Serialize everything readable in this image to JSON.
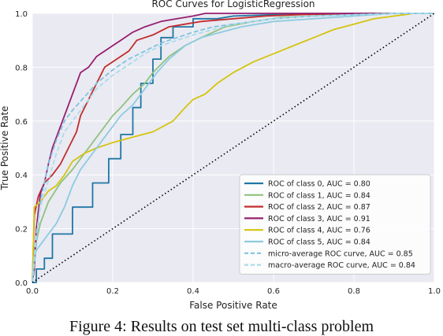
{
  "caption": "Figure 4: Results on test set multi-class problem",
  "chart_data": {
    "type": "line",
    "title": "ROC Curves for LogisticRegression",
    "xlabel": "False Positive Rate",
    "ylabel": "True Positive Rate",
    "xlim": [
      0,
      1
    ],
    "ylim": [
      0,
      1
    ],
    "xticks": [
      "0.0",
      "0.2",
      "0.4",
      "0.6",
      "0.8",
      "1.0"
    ],
    "yticks": [
      "0.0",
      "0.2",
      "0.4",
      "0.6",
      "0.8",
      "1.0"
    ],
    "grid": true,
    "legend_position": "lower-right",
    "series": [
      {
        "name": "ROC of class 0, AUC = 0.80",
        "color": "#1f77a4",
        "dash": false,
        "x": [
          0,
          0.01,
          0.01,
          0.03,
          0.03,
          0.05,
          0.05,
          0.1,
          0.1,
          0.15,
          0.15,
          0.19,
          0.19,
          0.22,
          0.22,
          0.25,
          0.25,
          0.27,
          0.27,
          0.3,
          0.3,
          0.32,
          0.32,
          0.35,
          0.35,
          0.4,
          0.4,
          0.46,
          0.5,
          0.6,
          0.7,
          0.8,
          1.0
        ],
        "y": [
          0,
          0,
          0.05,
          0.05,
          0.09,
          0.09,
          0.18,
          0.18,
          0.28,
          0.28,
          0.37,
          0.37,
          0.46,
          0.46,
          0.55,
          0.55,
          0.65,
          0.65,
          0.74,
          0.74,
          0.83,
          0.83,
          0.91,
          0.91,
          0.95,
          0.95,
          0.98,
          0.98,
          0.99,
          0.995,
          0.997,
          1.0,
          1.0
        ]
      },
      {
        "name": "ROC of class 1, AUC = 0.84",
        "color": "#8fc27f",
        "dash": false,
        "x": [
          0,
          0.005,
          0.02,
          0.04,
          0.07,
          0.1,
          0.13,
          0.17,
          0.2,
          0.22,
          0.25,
          0.28,
          0.3,
          0.34,
          0.38,
          0.42,
          0.45,
          0.48,
          0.55,
          0.62,
          0.7,
          0.8,
          1.0
        ],
        "y": [
          0,
          0.12,
          0.22,
          0.3,
          0.37,
          0.42,
          0.48,
          0.56,
          0.62,
          0.65,
          0.7,
          0.74,
          0.78,
          0.84,
          0.88,
          0.91,
          0.93,
          0.95,
          0.97,
          0.985,
          0.99,
          1.0,
          1.0
        ]
      },
      {
        "name": "ROC of class 2, AUC = 0.87",
        "color": "#c22c2c",
        "dash": false,
        "x": [
          0,
          0.005,
          0.015,
          0.03,
          0.05,
          0.07,
          0.09,
          0.11,
          0.12,
          0.14,
          0.16,
          0.18,
          0.21,
          0.24,
          0.26,
          0.3,
          0.34,
          0.38,
          0.42,
          0.5,
          0.58,
          0.66,
          0.75,
          0.85,
          1.0
        ],
        "y": [
          0,
          0.25,
          0.32,
          0.37,
          0.4,
          0.44,
          0.5,
          0.56,
          0.62,
          0.68,
          0.74,
          0.8,
          0.83,
          0.86,
          0.9,
          0.92,
          0.95,
          0.96,
          0.97,
          0.98,
          0.99,
          0.995,
          0.998,
          1.0,
          1.0
        ]
      },
      {
        "name": "ROC of class 3, AUC = 0.91",
        "color": "#961f6e",
        "dash": false,
        "x": [
          0,
          0.005,
          0.01,
          0.02,
          0.03,
          0.04,
          0.05,
          0.06,
          0.07,
          0.08,
          0.09,
          0.1,
          0.11,
          0.12,
          0.14,
          0.16,
          0.18,
          0.2,
          0.22,
          0.25,
          0.28,
          0.32,
          0.36,
          0.4,
          0.43,
          0.5,
          0.6,
          0.7,
          0.8,
          1.0
        ],
        "y": [
          0,
          0.05,
          0.2,
          0.33,
          0.37,
          0.44,
          0.5,
          0.54,
          0.58,
          0.62,
          0.66,
          0.7,
          0.74,
          0.78,
          0.8,
          0.84,
          0.86,
          0.88,
          0.9,
          0.93,
          0.95,
          0.97,
          0.98,
          0.99,
          1.0,
          1.0,
          1.0,
          1.0,
          1.0,
          1.0
        ]
      },
      {
        "name": "ROC of class 4, AUC = 0.76",
        "color": "#d4c40e",
        "dash": false,
        "x": [
          0,
          0.005,
          0.02,
          0.04,
          0.06,
          0.08,
          0.1,
          0.13,
          0.16,
          0.2,
          0.25,
          0.3,
          0.35,
          0.38,
          0.4,
          0.43,
          0.46,
          0.5,
          0.55,
          0.6,
          0.65,
          0.7,
          0.75,
          0.8,
          0.85,
          0.9,
          0.95,
          1.0
        ],
        "y": [
          0,
          0.28,
          0.3,
          0.34,
          0.36,
          0.4,
          0.45,
          0.48,
          0.5,
          0.52,
          0.54,
          0.56,
          0.6,
          0.65,
          0.68,
          0.7,
          0.74,
          0.78,
          0.82,
          0.85,
          0.88,
          0.91,
          0.94,
          0.96,
          0.98,
          0.99,
          1.0,
          1.0
        ]
      },
      {
        "name": "ROC of class 5, AUC = 0.84",
        "color": "#8ccbe0",
        "dash": false,
        "x": [
          0,
          0.005,
          0.01,
          0.02,
          0.03,
          0.04,
          0.06,
          0.08,
          0.1,
          0.12,
          0.14,
          0.16,
          0.18,
          0.2,
          0.22,
          0.25,
          0.28,
          0.31,
          0.34,
          0.38,
          0.42,
          0.47,
          0.52,
          0.6,
          0.7,
          0.8,
          0.9,
          1.0
        ],
        "y": [
          0,
          0.1,
          0.12,
          0.14,
          0.16,
          0.18,
          0.22,
          0.28,
          0.36,
          0.42,
          0.46,
          0.5,
          0.54,
          0.58,
          0.62,
          0.66,
          0.72,
          0.78,
          0.83,
          0.88,
          0.91,
          0.93,
          0.95,
          0.97,
          0.98,
          0.99,
          1.0,
          1.0
        ]
      },
      {
        "name": "micro-average ROC curve, AUC = 0.85",
        "color": "#7ec4de",
        "dash": true,
        "x": [
          0,
          0.01,
          0.02,
          0.04,
          0.06,
          0.08,
          0.1,
          0.13,
          0.16,
          0.2,
          0.24,
          0.28,
          0.32,
          0.36,
          0.4,
          0.45,
          0.5,
          0.55,
          0.6,
          0.7,
          0.8,
          0.9,
          1.0
        ],
        "y": [
          0,
          0.14,
          0.3,
          0.44,
          0.53,
          0.6,
          0.64,
          0.69,
          0.74,
          0.79,
          0.83,
          0.86,
          0.89,
          0.91,
          0.93,
          0.95,
          0.96,
          0.97,
          0.98,
          0.99,
          0.995,
          1.0,
          1.0
        ]
      },
      {
        "name": "macro-average ROC curve, AUC = 0.84",
        "color": "#aadcec",
        "dash": true,
        "x": [
          0,
          0.01,
          0.02,
          0.04,
          0.06,
          0.08,
          0.1,
          0.13,
          0.16,
          0.2,
          0.24,
          0.28,
          0.32,
          0.36,
          0.4,
          0.45,
          0.5,
          0.55,
          0.6,
          0.7,
          0.8,
          0.9,
          1.0
        ],
        "y": [
          0,
          0.18,
          0.28,
          0.38,
          0.48,
          0.56,
          0.6,
          0.66,
          0.72,
          0.77,
          0.81,
          0.85,
          0.88,
          0.9,
          0.92,
          0.94,
          0.96,
          0.97,
          0.98,
          0.99,
          0.995,
          1.0,
          1.0
        ]
      }
    ],
    "reference_line": {
      "x": [
        0,
        1
      ],
      "y": [
        0,
        1
      ],
      "style": "dotted",
      "color": "#000000"
    }
  }
}
